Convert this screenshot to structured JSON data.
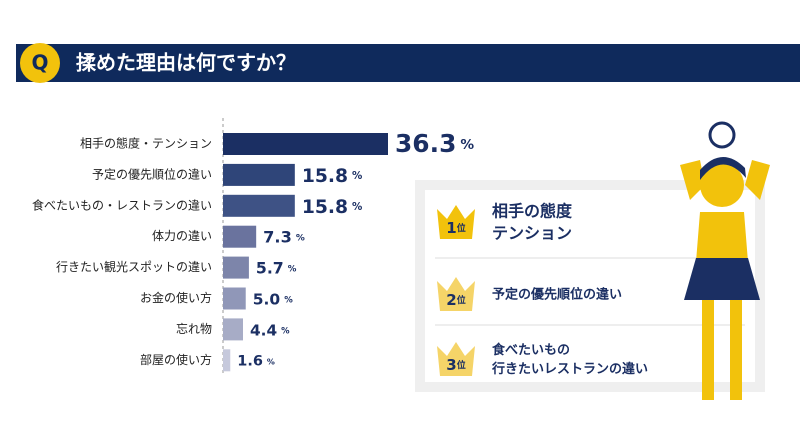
{
  "badge": "Q",
  "chart_data": {
    "type": "hbar",
    "title": "揉めた理由は何ですか？",
    "categories": [
      "相手の態度・テンション",
      "予定の優先順位の違い",
      "食べたいもの・レストランの違い",
      "体力の違い",
      "行きたい観光スポットの違い",
      "お金の使い方",
      "忘れ物",
      "部屋の使い方"
    ],
    "values": [
      36.3,
      15.8,
      15.8,
      7.3,
      5.7,
      5.0,
      4.4,
      1.6
    ],
    "value_labels": [
      "36.3",
      "15.8",
      "15.8",
      "7.3",
      "5.7",
      "5.0",
      "4.4",
      "1.6"
    ],
    "unit": "%",
    "colors": [
      "#1b2f63",
      "#2f4579",
      "#3e5285",
      "#6a739e",
      "#7d85aa",
      "#9097b8",
      "#a7acc6",
      "#c6c9dc"
    ]
  },
  "ranking": {
    "rank_suffix": "位",
    "items": [
      {
        "rank": "1",
        "lines": [
          "相手の態度",
          "テンション"
        ]
      },
      {
        "rank": "2",
        "lines": [
          "予定の優先順位の違い"
        ]
      },
      {
        "rank": "3",
        "lines": [
          "食べたいもの",
          "行きたいレストランの違い"
        ]
      }
    ]
  }
}
